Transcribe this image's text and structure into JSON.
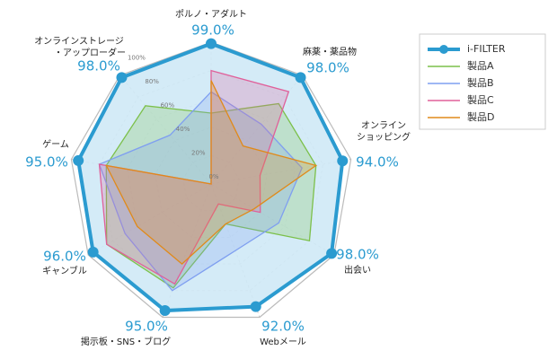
{
  "chart_data": {
    "type": "radar",
    "categories": [
      [
        "ポルノ・アダルト"
      ],
      [
        "麻薬・薬品物"
      ],
      [
        "オンライン",
        "ショッピング"
      ],
      [
        "出会い"
      ],
      [
        "Webメール"
      ],
      [
        "掲示板・SNS・ブログ"
      ],
      [
        "ギャンブル"
      ],
      [
        "ゲーム"
      ],
      [
        "オンラインストレージ",
        "・アップローダー"
      ]
    ],
    "rlim": [
      0,
      100
    ],
    "rticks": [
      {
        "value": 0,
        "label": "0%"
      },
      {
        "value": 20,
        "label": "20%"
      },
      {
        "value": 40,
        "label": "40%"
      },
      {
        "value": 60,
        "label": "60%"
      },
      {
        "value": 80,
        "label": "80%"
      },
      {
        "value": 100,
        "label": "100%"
      }
    ],
    "grid": true,
    "legend": "right",
    "series": [
      {
        "name": "i-FILTER",
        "color": "#2b9bd0",
        "fill": "#cfe9f6",
        "values": [
          99,
          98,
          94,
          98,
          92,
          95,
          96,
          95,
          98
        ],
        "value_labels": [
          "99.0%",
          "98.0%",
          "94.0%",
          "98.0%",
          "92.0%",
          "95.0%",
          "96.0%",
          "95.0%",
          "98.0%"
        ]
      },
      {
        "name": "製品A",
        "color": "#7cc04a",
        "values": [
          50,
          74,
          75,
          80,
          30,
          78,
          85,
          75,
          72
        ]
      },
      {
        "name": "製品B",
        "color": "#7f9ff0",
        "values": [
          65,
          55,
          65,
          55,
          50,
          80,
          70,
          80,
          45
        ]
      },
      {
        "name": "製品C",
        "color": "#e0609a",
        "values": [
          80,
          85,
          35,
          40,
          15,
          75,
          85,
          80,
          0
        ]
      },
      {
        "name": "製品D",
        "color": "#e08a1a",
        "values": [
          73,
          35,
          75,
          35,
          30,
          60,
          60,
          75,
          0
        ]
      }
    ]
  }
}
